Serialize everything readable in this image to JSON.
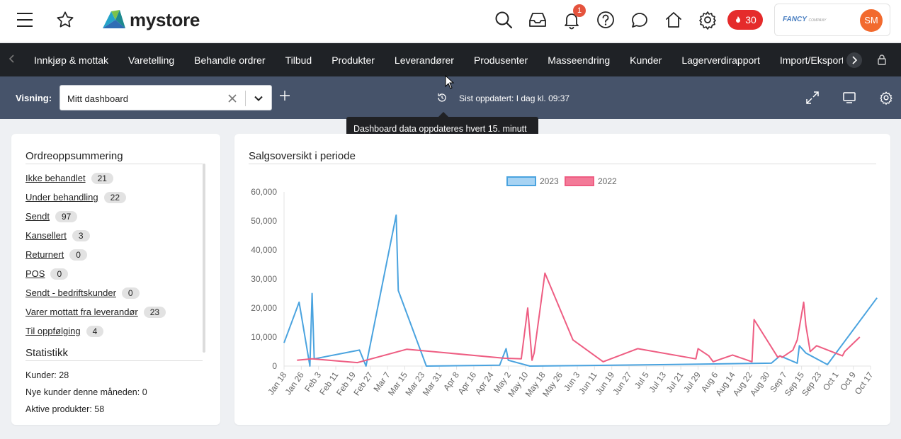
{
  "topbar": {
    "logo_text": "mystore",
    "notification_count": "1",
    "credits": "30",
    "company_logo_text": "FANCY",
    "company_logo_sub": "COMPANY",
    "avatar_initials": "SM"
  },
  "nav": {
    "items": [
      "Innkjøp & mottak",
      "Varetelling",
      "Behandle ordrer",
      "Tilbud",
      "Produkter",
      "Leverandører",
      "Produsenter",
      "Masseendring",
      "Kunder",
      "Lagerverdirapport",
      "Import/Eksport Produkt CS"
    ]
  },
  "viewbar": {
    "label": "Visning:",
    "selected_view": "Mitt dashboard",
    "updated_text": "Sist oppdatert: I dag kl. 09:37"
  },
  "tooltip": {
    "text": "Dashboard data oppdateres hvert 15. minutt"
  },
  "order_summary": {
    "title": "Ordreoppsummering",
    "rows": [
      {
        "label": "Ikke behandlet",
        "count": "21"
      },
      {
        "label": "Under behandling",
        "count": "22"
      },
      {
        "label": "Sendt",
        "count": "97"
      },
      {
        "label": "Kansellert",
        "count": "3"
      },
      {
        "label": "Returnert",
        "count": "0"
      },
      {
        "label": "POS",
        "count": "0"
      },
      {
        "label": "Sendt - bedriftskunder",
        "count": "0"
      },
      {
        "label": "Varer mottatt fra leverandør",
        "count": "23"
      },
      {
        "label": "Til oppfølging",
        "count": "4"
      }
    ]
  },
  "statistics": {
    "title": "Statistikk",
    "rows": [
      "Kunder: 28",
      "Nye kunder denne måneden: 0",
      "Aktive produkter: 58"
    ]
  },
  "sales_chart": {
    "title": "Salgsoversikt i periode",
    "colors": {
      "2023": "#4aa3df",
      "2022": "#ee5d82",
      "2023_fill": "#a7d3f3",
      "2022_fill": "#f37a98"
    }
  },
  "chart_data": {
    "type": "line",
    "title": "Salgsoversikt i periode",
    "xlabel": "",
    "ylabel": "",
    "ylim": [
      0,
      60000
    ],
    "yticks": [
      "0",
      "10,000",
      "20,000",
      "30,000",
      "40,000",
      "50,000",
      "60,000"
    ],
    "xticks": [
      "Jan 18",
      "Jan 26",
      "Feb 3",
      "Feb 11",
      "Feb 19",
      "Feb 27",
      "Mar 7",
      "Mar 15",
      "Mar 23",
      "Mar 31",
      "Apr 8",
      "Apr 16",
      "Apr 24",
      "May 2",
      "May 10",
      "May 18",
      "May 26",
      "Jun 3",
      "Jun 11",
      "Jun 19",
      "Jun 27",
      "Jul 5",
      "Jul 13",
      "Jul 21",
      "Jul 29",
      "Aug 6",
      "Aug 14",
      "Aug 22",
      "Aug 30",
      "Sep 7",
      "Sep 15",
      "Sep 23",
      "Oct 1",
      "Oct 9",
      "Oct 17"
    ],
    "legend_position": "top-center",
    "grid": false,
    "series": [
      {
        "name": "2023",
        "points": [
          [
            "Jan 18",
            8000
          ],
          [
            "Jan 25",
            22000
          ],
          [
            "Jan 30",
            0
          ],
          [
            "Jan 31",
            25000
          ],
          [
            "Feb 1",
            2500
          ],
          [
            "Feb 22",
            5500
          ],
          [
            "Feb 25",
            0
          ],
          [
            "Mar 11",
            52000
          ],
          [
            "Mar 12",
            26000
          ],
          [
            "Mar 25",
            0
          ],
          [
            "Apr 28",
            300
          ],
          [
            "May 1",
            6000
          ],
          [
            "May 2",
            2000
          ],
          [
            "May 12",
            0
          ],
          [
            "Jun 6",
            200
          ],
          [
            "Jul 15",
            500
          ],
          [
            "Sep 1",
            1000
          ],
          [
            "Sep 5",
            3500
          ],
          [
            "Sep 13",
            1000
          ],
          [
            "Sep 14",
            7000
          ],
          [
            "Sep 17",
            4500
          ],
          [
            "Sep 27",
            500
          ],
          [
            "Oct 20",
            23500
          ]
        ]
      },
      {
        "name": "2022",
        "points": [
          [
            "Jan 24",
            2000
          ],
          [
            "Jan 31",
            2500
          ],
          [
            "Feb 21",
            1200
          ],
          [
            "Mar 16",
            5800
          ],
          [
            "Apr 30",
            2700
          ],
          [
            "May 8",
            2500
          ],
          [
            "May 11",
            20000
          ],
          [
            "May 13",
            2000
          ],
          [
            "May 14",
            4500
          ],
          [
            "May 19",
            32000
          ],
          [
            "Jun 1",
            9000
          ],
          [
            "Jun 15",
            1500
          ],
          [
            "Jul 1",
            6000
          ],
          [
            "Jul 28",
            2500
          ],
          [
            "Jul 29",
            6000
          ],
          [
            "Aug 3",
            3500
          ],
          [
            "Aug 5",
            1500
          ],
          [
            "Aug 14",
            3800
          ],
          [
            "Aug 23",
            1500
          ],
          [
            "Aug 24",
            16000
          ],
          [
            "Sep 4",
            3000
          ],
          [
            "Sep 5",
            3500
          ],
          [
            "Sep 6",
            3000
          ],
          [
            "Sep 11",
            5500
          ],
          [
            "Sep 13",
            9000
          ],
          [
            "Sep 16",
            22000
          ],
          [
            "Sep 17",
            14000
          ],
          [
            "Sep 19",
            5000
          ],
          [
            "Sep 22",
            7000
          ],
          [
            "Oct 4",
            3500
          ],
          [
            "Oct 5",
            5000
          ],
          [
            "Oct 12",
            10000
          ]
        ]
      }
    ]
  }
}
